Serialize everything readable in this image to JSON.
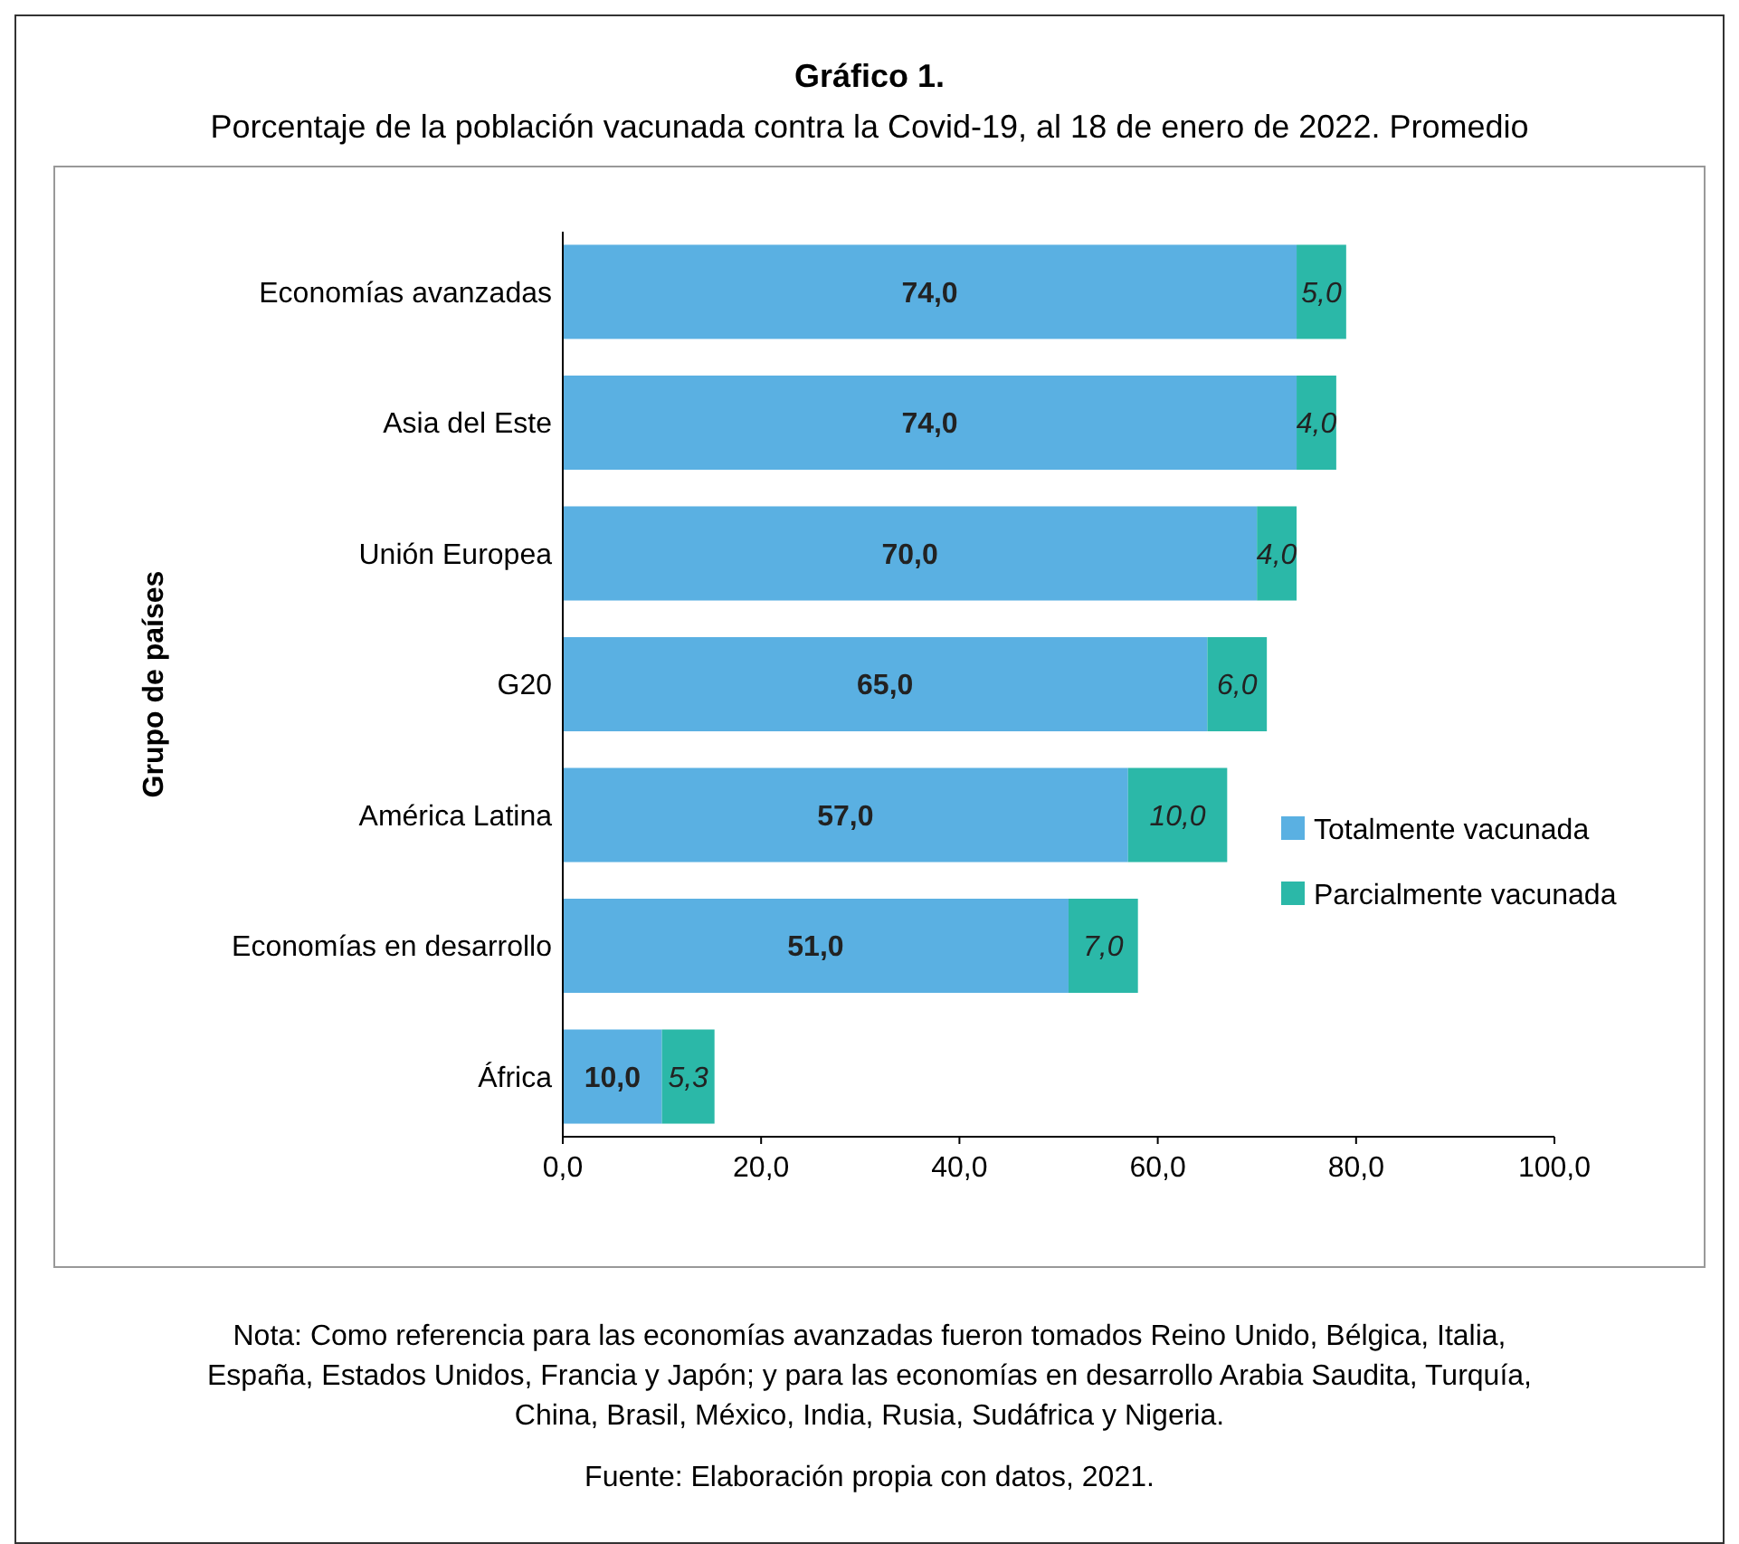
{
  "chart_data": {
    "type": "bar",
    "orientation": "horizontal",
    "stacked": true,
    "title": "Gráfico 1.",
    "subtitle": "Porcentaje de la población vacunada contra la Covid-19, al 18 de enero de 2022. Promedio",
    "ylabel": "Grupo de países",
    "categories": [
      "Economías avanzadas",
      "Asia del Este",
      "Unión Europea",
      "G20",
      "América Latina",
      "Economías en desarrollo",
      "África"
    ],
    "series": [
      {
        "name": "Totalmente vacunada",
        "color": "#5ab0e2",
        "values": [
          74,
          74,
          70,
          65,
          57,
          51,
          10
        ],
        "value_labels": [
          "74,0",
          "74,0",
          "70,0",
          "65,0",
          "57,0",
          "51,0",
          "10,0"
        ]
      },
      {
        "name": "Parcialmente vacunada",
        "color": "#2bb8a8",
        "values": [
          5,
          4,
          4,
          6,
          10,
          7,
          5.3
        ],
        "value_labels": [
          "5,0",
          "4,0",
          "4,0",
          "6,0",
          "10,0",
          "7,0",
          "5,3"
        ]
      }
    ],
    "xlim": [
      0,
      100
    ],
    "xticks": [
      {
        "value": 0,
        "label": "0,0"
      },
      {
        "value": 20,
        "label": "20,0"
      },
      {
        "value": 40,
        "label": "40,0"
      },
      {
        "value": 60,
        "label": "60,0"
      },
      {
        "value": 80,
        "label": "80,0"
      },
      {
        "value": 100,
        "label": "100,0"
      }
    ],
    "legend": "right",
    "grid": false,
    "annotations": [
      "Nota: Como referencia para las economías avanzadas fueron tomados Reino Unido, Bélgica, Italia, España, Estados Unidos, Francia y Japón; y para las economías en desarrollo Arabia Saudita, Turquía, China, Brasil, México, India, Rusia, Sudáfrica y Nigeria.",
      "Fuente: Elaboración propia con datos, 2021."
    ]
  }
}
